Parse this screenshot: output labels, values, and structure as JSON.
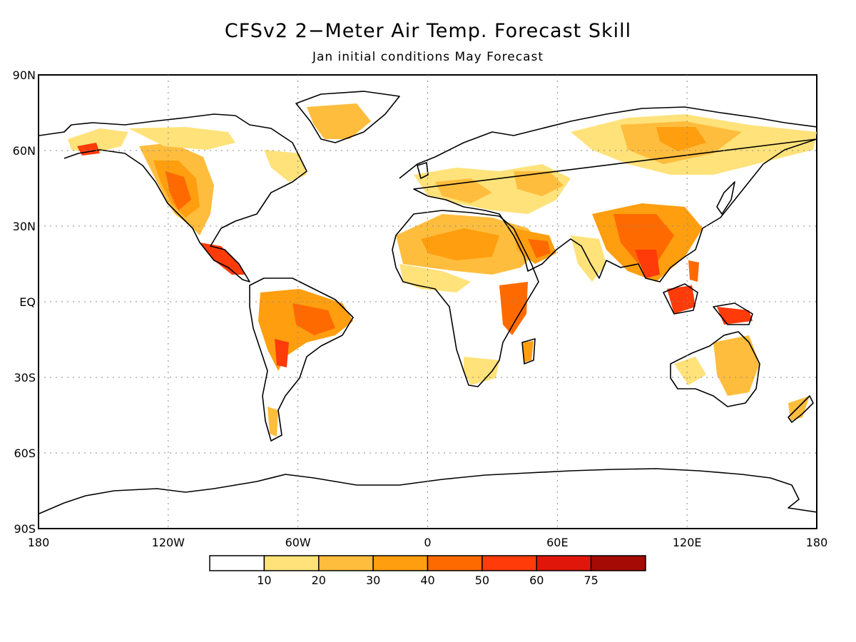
{
  "title": "CFSv2 2−Meter Air Temp. Forecast Skill",
  "subtitle": "Jan initial conditions   May Forecast",
  "map": {
    "lat_labels": [
      "90N",
      "60N",
      "30N",
      "EQ",
      "30S",
      "60S",
      "90S"
    ],
    "lon_labels": [
      "180",
      "120W",
      "60W",
      "0",
      "60E",
      "120E",
      "180"
    ],
    "grid": true,
    "projection": "cylindrical equidistant"
  },
  "legend": {
    "bins": [
      {
        "label": "",
        "color": "#ffffff"
      },
      {
        "label": "10",
        "color": "#ffe27a"
      },
      {
        "label": "20",
        "color": "#ffbd3d"
      },
      {
        "label": "30",
        "color": "#ff9e0f"
      },
      {
        "label": "40",
        "color": "#ff6a00"
      },
      {
        "label": "50",
        "color": "#ff3b0a"
      },
      {
        "label": "60",
        "color": "#e0160a"
      },
      {
        "label": "75",
        "color": "#a50a05"
      }
    ]
  },
  "colors": {
    "skill_low": "#ffe27a",
    "skill_mid": "#ffbd3d",
    "skill_mid2": "#ff9e0f",
    "skill_high": "#ff6a00",
    "skill_higher": "#ff3b0a",
    "skill_top": "#e0160a"
  }
}
